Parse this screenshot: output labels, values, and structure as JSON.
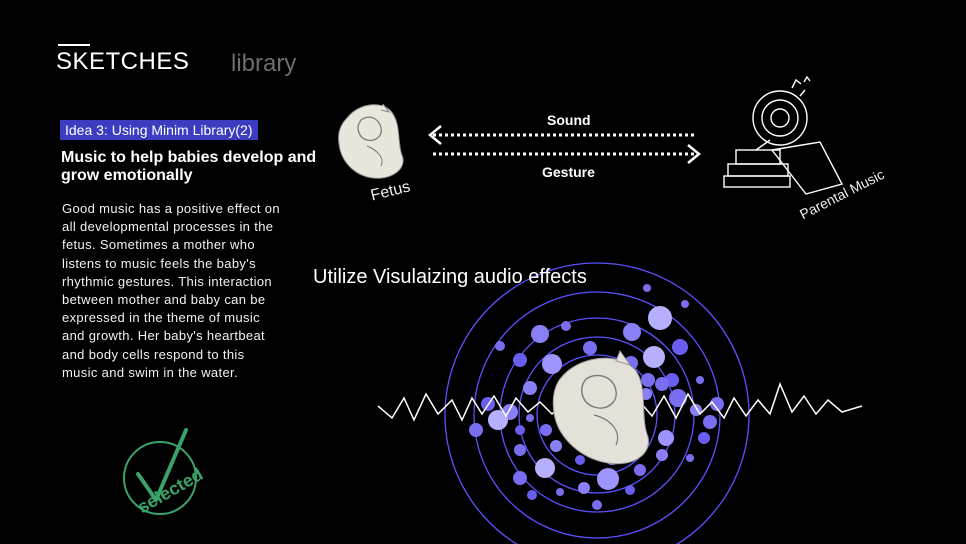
{
  "header": {
    "title": "SKETCHES",
    "secondary_tab": "library"
  },
  "idea": {
    "badge": "Idea 3: Using Minim Library(2)",
    "headline": "Music to help babies develop and grow emotionally",
    "body": "Good music has a positive effect on all developmental processes in the fetus. Sometimes a mother who listens to music feels the baby's rhythmic gestures. This interaction between mother and baby can be expressed in the theme of music and growth. Her baby's heartbeat and body cells respond to this music and swim in the water."
  },
  "diagram": {
    "arrow_top_label": "Sound",
    "arrow_bottom_label": "Gesture",
    "fetus_label": "Fetus",
    "parental_label": "Parental Music"
  },
  "visualization": {
    "title": "Utilize Visulaizing audio effects",
    "ring_color": "#5a52ff",
    "dot_color": "#7a6ef0"
  },
  "stamp": {
    "label": "selected",
    "color": "#3aa36a"
  }
}
